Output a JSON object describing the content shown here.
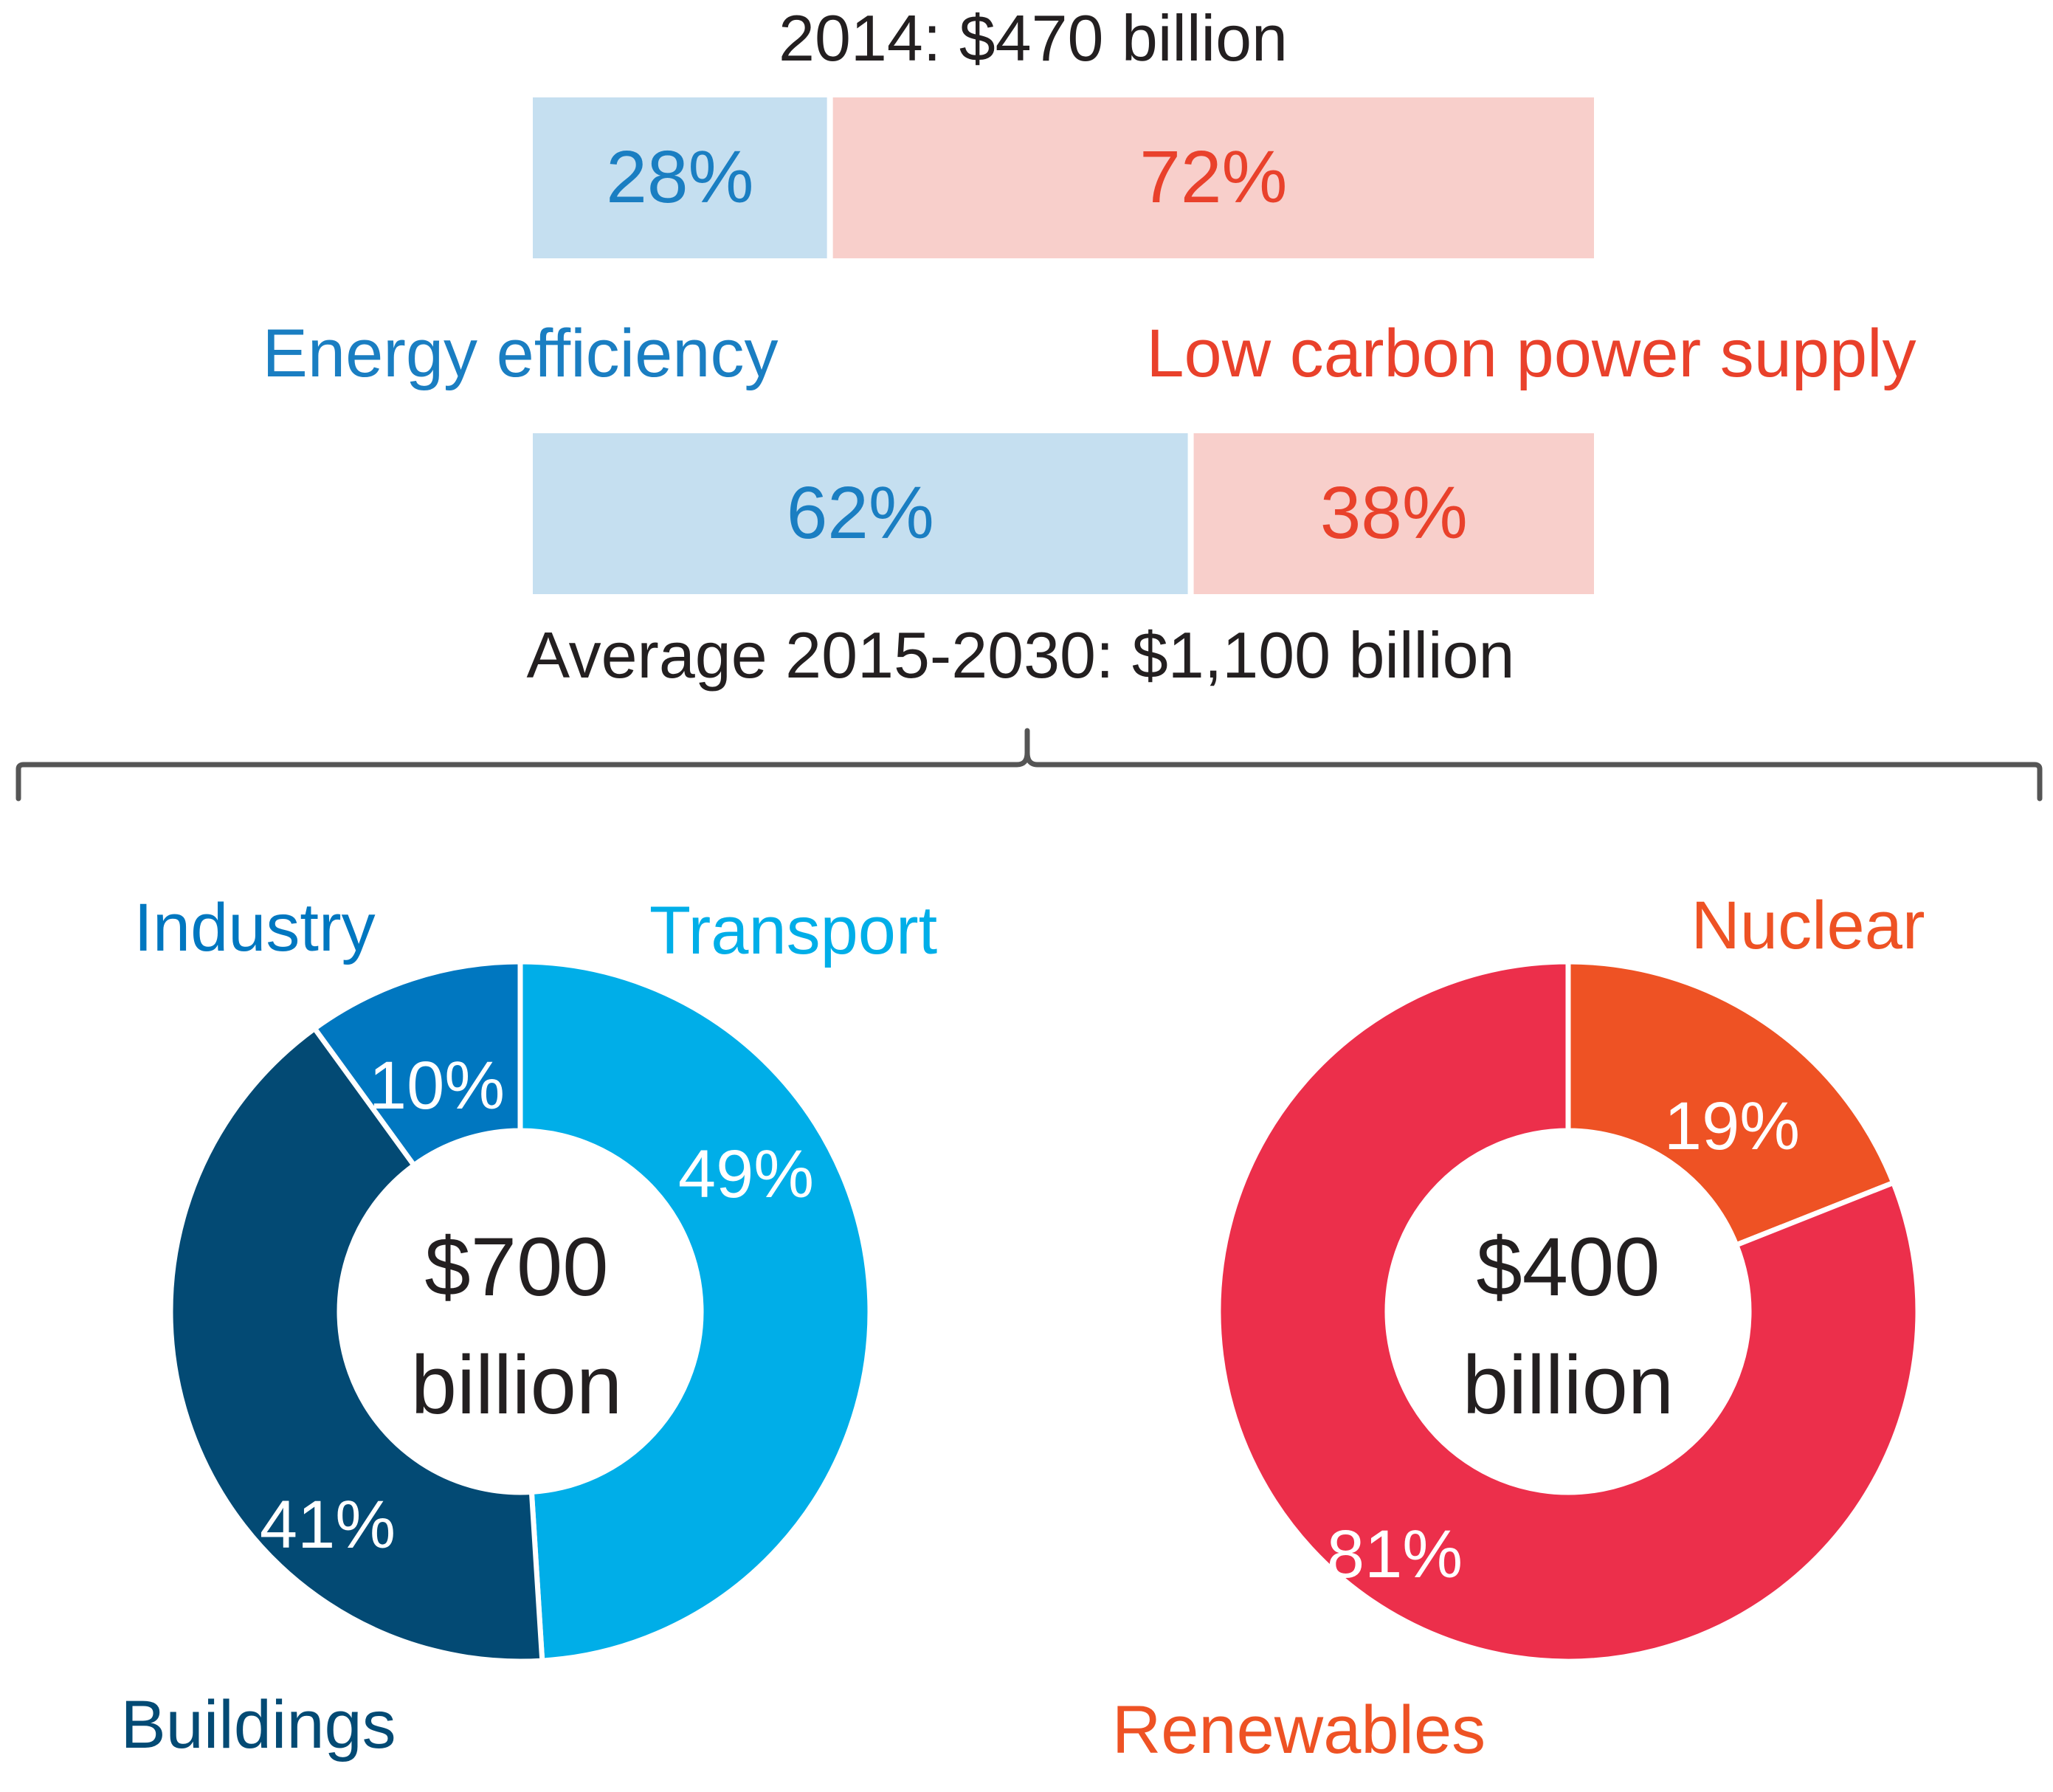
{
  "colors": {
    "ee_fill": "#c5dff0",
    "ee_text": "#1a7ec2",
    "lc_fill": "#f8cfcb",
    "lc_text": "#e9412b",
    "industry": "#0077c0",
    "transport": "#00aee8",
    "buildings": "#034a74",
    "nuclear": "#ee5224",
    "renewables": "#ec2f4b",
    "bracket": "#555555",
    "dark_text": "#231f20"
  },
  "chart_data": [
    {
      "type": "bar",
      "orientation": "horizontal-stacked",
      "title": "2014: $470 billion",
      "series": [
        {
          "name": "Energy efficiency",
          "value": 28,
          "label": "28%"
        },
        {
          "name": "Low carbon power supply",
          "value": 72,
          "label": "72%"
        }
      ]
    },
    {
      "type": "bar",
      "orientation": "horizontal-stacked",
      "title": "Average 2015-2030: $1,100 billion",
      "series": [
        {
          "name": "Energy efficiency",
          "value": 62,
          "label": "62%"
        },
        {
          "name": "Low carbon power supply",
          "value": 38,
          "label": "38%"
        }
      ]
    },
    {
      "type": "pie",
      "style": "donut",
      "center_label": [
        "$700",
        "billion"
      ],
      "slices": [
        {
          "name": "Transport",
          "value": 49,
          "label": "49%"
        },
        {
          "name": "Buildings",
          "value": 41,
          "label": "41%"
        },
        {
          "name": "Industry",
          "value": 10,
          "label": "10%"
        }
      ]
    },
    {
      "type": "pie",
      "style": "donut",
      "center_label": [
        "$400",
        "billion"
      ],
      "slices": [
        {
          "name": "Nuclear",
          "value": 19,
          "label": "19%"
        },
        {
          "name": "Renewables",
          "value": 81,
          "label": "81%"
        }
      ]
    }
  ],
  "legend": {
    "energy_efficiency": "Energy efficiency",
    "low_carbon": "Low carbon power supply"
  }
}
